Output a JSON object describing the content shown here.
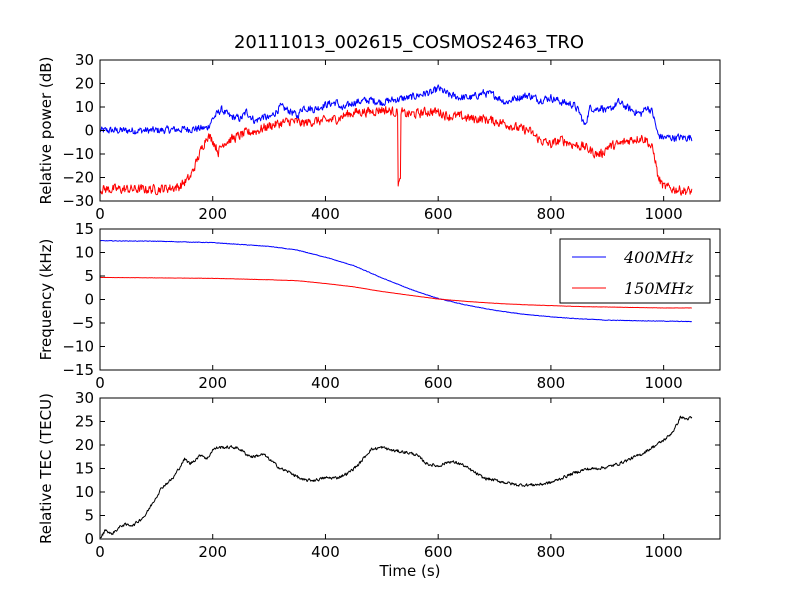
{
  "chart_data": [
    {
      "type": "line",
      "title": "20111013_002615_COSMOS2463_TRO",
      "xlabel": "",
      "ylabel": "Relative power (dB)",
      "xlim": [
        0,
        1100
      ],
      "ylim": [
        -30,
        30
      ],
      "xticks": [
        0,
        200,
        400,
        600,
        800,
        1000
      ],
      "yticks": [
        30,
        20,
        10,
        0,
        -10,
        -20,
        -30
      ],
      "grid": false,
      "series": [
        {
          "color": "#0000ff",
          "noise": 2.2,
          "x": [
            0,
            100,
            190,
            200,
            215,
            230,
            250,
            260,
            275,
            290,
            300,
            320,
            340,
            350,
            360,
            380,
            400,
            420,
            430,
            450,
            480,
            500,
            520,
            550,
            580,
            590,
            600,
            620,
            640,
            660,
            680,
            700,
            720,
            740,
            760,
            780,
            800,
            820,
            840,
            850,
            860,
            870,
            880,
            890,
            900,
            920,
            940,
            960,
            970,
            980,
            990,
            1000,
            1020,
            1050
          ],
          "y": [
            0,
            0,
            1,
            5,
            9,
            6,
            5,
            8,
            4,
            6,
            5,
            10,
            8,
            6,
            10,
            9,
            11,
            12,
            9,
            12,
            13,
            12,
            13,
            14,
            16,
            16,
            18,
            15,
            14,
            14,
            16,
            15,
            12,
            14,
            15,
            13,
            14,
            12,
            11,
            8,
            2,
            10,
            9,
            10,
            8,
            12,
            9,
            7,
            10,
            8,
            -2,
            -3,
            -3,
            -3
          ]
        },
        {
          "color": "#ff0000",
          "noise": 2.8,
          "x": [
            0,
            100,
            140,
            160,
            170,
            180,
            190,
            200,
            210,
            220,
            240,
            260,
            280,
            300,
            320,
            340,
            360,
            380,
            400,
            420,
            440,
            460,
            480,
            500,
            520,
            528,
            529,
            533,
            534,
            540,
            560,
            580,
            600,
            620,
            640,
            660,
            680,
            700,
            720,
            740,
            760,
            780,
            790,
            800,
            820,
            840,
            860,
            880,
            890,
            900,
            920,
            940,
            960,
            970,
            980,
            985,
            990,
            1000,
            1020,
            1050
          ],
          "y": [
            -25,
            -25,
            -24,
            -20,
            -14,
            -8,
            -2,
            -4,
            -9,
            -5,
            -3,
            -1,
            0,
            2,
            3,
            4,
            3,
            4,
            4,
            5,
            7,
            8,
            8,
            9,
            8,
            8,
            -22,
            -22,
            8,
            7,
            7,
            8,
            8,
            6,
            6,
            5,
            5,
            4,
            3,
            1,
            0,
            -4,
            -5,
            -6,
            -4,
            -6,
            -7,
            -10,
            -10,
            -7,
            -6,
            -4,
            -3,
            -4,
            -8,
            -12,
            -20,
            -24,
            -25,
            -26
          ]
        }
      ]
    },
    {
      "type": "line",
      "title": "",
      "xlabel": "",
      "ylabel": "Frequency (kHz)",
      "xlim": [
        0,
        1100
      ],
      "ylim": [
        -15,
        15
      ],
      "xticks": [
        0,
        200,
        400,
        600,
        800,
        1000
      ],
      "yticks": [
        15,
        10,
        5,
        0,
        -5,
        -10,
        -15
      ],
      "grid": false,
      "legend_position": "top-right",
      "series": [
        {
          "name": "400MHz",
          "color": "#0000ff",
          "noise": 0.08,
          "x": [
            0,
            100,
            200,
            300,
            350,
            400,
            450,
            500,
            550,
            600,
            650,
            700,
            750,
            800,
            850,
            900,
            950,
            1000,
            1050
          ],
          "y": [
            12.5,
            12.4,
            12.1,
            11.3,
            10.5,
            9.0,
            7.2,
            4.6,
            2.2,
            0.2,
            -1.2,
            -2.3,
            -3.1,
            -3.7,
            -4.1,
            -4.4,
            -4.5,
            -4.6,
            -4.7
          ]
        },
        {
          "name": "150MHz",
          "color": "#ff0000",
          "noise": 0.03,
          "x": [
            0,
            100,
            200,
            300,
            350,
            400,
            450,
            500,
            550,
            600,
            650,
            700,
            750,
            800,
            850,
            900,
            950,
            1000,
            1050
          ],
          "y": [
            4.7,
            4.6,
            4.5,
            4.2,
            4.0,
            3.4,
            2.7,
            1.7,
            0.9,
            0.1,
            -0.4,
            -0.8,
            -1.1,
            -1.3,
            -1.5,
            -1.6,
            -1.7,
            -1.8,
            -1.8
          ]
        }
      ]
    },
    {
      "type": "line",
      "title": "",
      "xlabel": "Time (s)",
      "ylabel": "Relative TEC (TECU)",
      "xlim": [
        0,
        1100
      ],
      "ylim": [
        0,
        30
      ],
      "xticks": [
        0,
        200,
        400,
        600,
        800,
        1000
      ],
      "yticks": [
        30,
        25,
        20,
        15,
        10,
        5,
        0
      ],
      "grid": false,
      "series": [
        {
          "color": "#000000",
          "noise": 0.45,
          "x": [
            0,
            10,
            20,
            30,
            40,
            60,
            80,
            90,
            100,
            110,
            130,
            140,
            150,
            160,
            170,
            180,
            190,
            200,
            210,
            220,
            240,
            250,
            260,
            270,
            290,
            300,
            320,
            340,
            360,
            380,
            400,
            420,
            440,
            460,
            480,
            500,
            520,
            540,
            560,
            580,
            600,
            620,
            640,
            660,
            680,
            700,
            720,
            740,
            760,
            780,
            800,
            820,
            840,
            860,
            880,
            900,
            920,
            940,
            960,
            980,
            1000,
            1010,
            1020,
            1030,
            1040,
            1050
          ],
          "y": [
            0,
            2,
            1,
            2,
            3,
            3,
            5,
            7,
            9,
            11,
            13,
            15,
            17,
            16,
            17,
            18,
            17,
            19,
            19.5,
            19.5,
            19.5,
            19,
            18,
            17.5,
            18,
            17,
            15,
            14,
            12.5,
            12.5,
            13,
            13,
            14,
            16,
            19,
            19.5,
            18.8,
            18.5,
            18,
            16,
            15.5,
            16.5,
            16,
            14.5,
            13,
            12.5,
            12,
            11.5,
            11.5,
            11.6,
            12,
            13,
            14,
            14.8,
            15,
            15.3,
            16,
            17,
            18,
            19.5,
            21,
            22,
            23.5,
            26,
            25.5,
            25.8
          ]
        }
      ]
    }
  ]
}
